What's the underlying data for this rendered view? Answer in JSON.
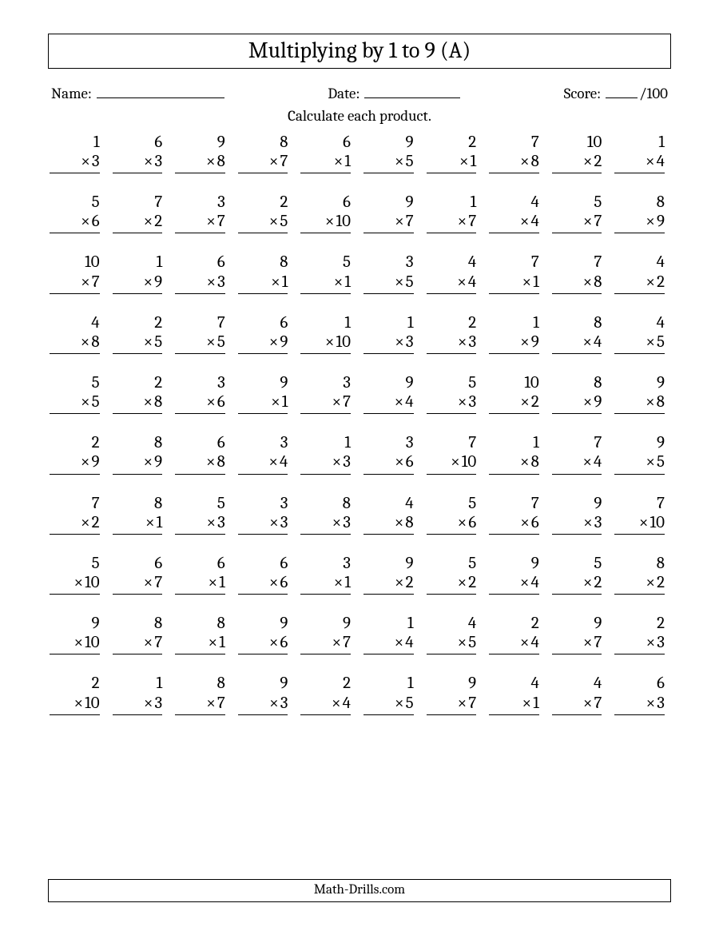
{
  "title": "Multiplying by 1 to 9 (A)",
  "labels": {
    "name": "Name:",
    "date": "Date:",
    "score": "Score:",
    "score_total": "/100"
  },
  "instruction": "Calculate each product.",
  "footer": "Math-Drills.com",
  "operator": "×",
  "rows": 10,
  "cols": 10,
  "problems": [
    [
      [
        1,
        3
      ],
      [
        6,
        3
      ],
      [
        9,
        8
      ],
      [
        8,
        7
      ],
      [
        6,
        1
      ],
      [
        9,
        5
      ],
      [
        2,
        1
      ],
      [
        7,
        8
      ],
      [
        10,
        2
      ],
      [
        1,
        4
      ]
    ],
    [
      [
        5,
        6
      ],
      [
        7,
        2
      ],
      [
        3,
        7
      ],
      [
        2,
        5
      ],
      [
        6,
        10
      ],
      [
        9,
        7
      ],
      [
        1,
        7
      ],
      [
        4,
        4
      ],
      [
        5,
        7
      ],
      [
        8,
        9
      ]
    ],
    [
      [
        10,
        7
      ],
      [
        1,
        9
      ],
      [
        6,
        3
      ],
      [
        8,
        1
      ],
      [
        5,
        1
      ],
      [
        3,
        5
      ],
      [
        4,
        4
      ],
      [
        7,
        1
      ],
      [
        7,
        8
      ],
      [
        4,
        2
      ]
    ],
    [
      [
        4,
        8
      ],
      [
        2,
        5
      ],
      [
        7,
        5
      ],
      [
        6,
        9
      ],
      [
        1,
        10
      ],
      [
        1,
        3
      ],
      [
        2,
        3
      ],
      [
        1,
        9
      ],
      [
        8,
        4
      ],
      [
        4,
        5
      ]
    ],
    [
      [
        5,
        5
      ],
      [
        2,
        8
      ],
      [
        3,
        6
      ],
      [
        9,
        1
      ],
      [
        3,
        7
      ],
      [
        9,
        4
      ],
      [
        5,
        3
      ],
      [
        10,
        2
      ],
      [
        8,
        9
      ],
      [
        9,
        8
      ]
    ],
    [
      [
        2,
        9
      ],
      [
        8,
        9
      ],
      [
        6,
        8
      ],
      [
        3,
        4
      ],
      [
        1,
        3
      ],
      [
        3,
        6
      ],
      [
        7,
        10
      ],
      [
        1,
        8
      ],
      [
        7,
        4
      ],
      [
        9,
        5
      ]
    ],
    [
      [
        7,
        2
      ],
      [
        8,
        1
      ],
      [
        5,
        3
      ],
      [
        3,
        3
      ],
      [
        8,
        3
      ],
      [
        4,
        8
      ],
      [
        5,
        6
      ],
      [
        7,
        6
      ],
      [
        9,
        3
      ],
      [
        7,
        10
      ]
    ],
    [
      [
        5,
        10
      ],
      [
        6,
        7
      ],
      [
        6,
        1
      ],
      [
        6,
        6
      ],
      [
        3,
        1
      ],
      [
        9,
        2
      ],
      [
        5,
        2
      ],
      [
        9,
        4
      ],
      [
        5,
        2
      ],
      [
        8,
        2
      ]
    ],
    [
      [
        9,
        10
      ],
      [
        8,
        7
      ],
      [
        8,
        1
      ],
      [
        9,
        6
      ],
      [
        9,
        7
      ],
      [
        1,
        4
      ],
      [
        4,
        5
      ],
      [
        2,
        4
      ],
      [
        9,
        7
      ],
      [
        2,
        3
      ]
    ],
    [
      [
        2,
        10
      ],
      [
        1,
        3
      ],
      [
        8,
        7
      ],
      [
        9,
        3
      ],
      [
        2,
        4
      ],
      [
        1,
        5
      ],
      [
        9,
        7
      ],
      [
        4,
        1
      ],
      [
        4,
        7
      ],
      [
        6,
        3
      ]
    ]
  ],
  "style": {
    "page_bg": "#ffffff",
    "text_color": "#000000",
    "border_color": "#000000",
    "title_fontsize": 28,
    "header_fontsize": 19,
    "instruction_fontsize": 19,
    "problem_fontsize": 21,
    "footer_fontsize": 17,
    "font_family": "Cambria, Georgia, serif"
  }
}
